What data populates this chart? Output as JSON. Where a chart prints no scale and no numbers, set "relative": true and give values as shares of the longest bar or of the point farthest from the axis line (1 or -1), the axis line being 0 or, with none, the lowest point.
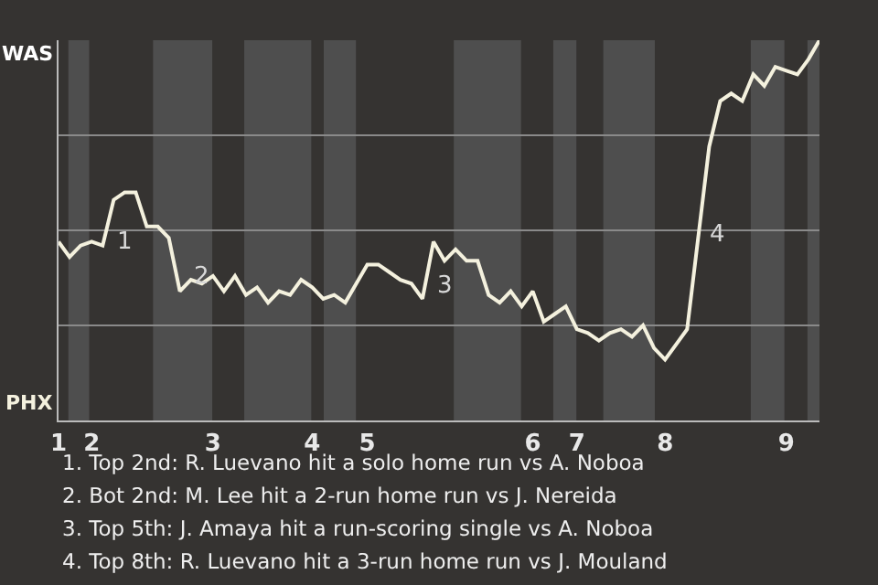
{
  "chart_data": {
    "type": "line",
    "categories": [
      "1",
      null,
      null,
      "2",
      null,
      null,
      null,
      null,
      null,
      null,
      null,
      null,
      null,
      null,
      "3",
      null,
      null,
      null,
      null,
      null,
      null,
      null,
      null,
      "4",
      null,
      null,
      null,
      null,
      "5",
      null,
      null,
      null,
      null,
      null,
      null,
      null,
      null,
      null,
      null,
      null,
      null,
      null,
      null,
      "6",
      null,
      null,
      null,
      "7",
      null,
      null,
      null,
      null,
      null,
      null,
      null,
      "8",
      null,
      null,
      null,
      null,
      null,
      null,
      null,
      null,
      null,
      null,
      "9",
      null,
      null,
      null
    ],
    "relative": true,
    "series": [
      {
        "color": "#f4f1de",
        "values": [
          0.47,
          0.43,
          0.46,
          0.47,
          0.46,
          0.58,
          0.6,
          0.6,
          0.51,
          0.51,
          0.48,
          0.34,
          0.37,
          0.36,
          0.38,
          0.34,
          0.38,
          0.33,
          0.35,
          0.31,
          0.34,
          0.33,
          0.37,
          0.35,
          0.32,
          0.33,
          0.31,
          0.36,
          0.41,
          0.41,
          0.39,
          0.37,
          0.36,
          0.32,
          0.47,
          0.42,
          0.45,
          0.42,
          0.42,
          0.33,
          0.31,
          0.34,
          0.3,
          0.34,
          0.26,
          0.28,
          0.3,
          0.24,
          0.23,
          0.21,
          0.23,
          0.24,
          0.22,
          0.25,
          0.19,
          0.16,
          0.2,
          0.24,
          0.48,
          0.72,
          0.84,
          0.86,
          0.84,
          0.91,
          0.88,
          0.93,
          0.92,
          0.91,
          0.95,
          1.0
        ]
      }
    ],
    "grid": "y",
    "marker": "none",
    "line_style": "solid",
    "annotations": [
      "WAS",
      "PHX",
      "1",
      "2",
      "3",
      "4",
      "1. Top 2nd: R. Luevano hit a solo home run vs A. Noboa",
      "2. Bot 2nd: M. Lee hit a 2-run home run vs J. Nereida",
      "3. Top 5th: J. Amaya hit a run-scoring single vs A. Noboa",
      "4. Top 8th: R. Luevano hit a 3-run home run vs J. Mouland"
    ]
  }
}
